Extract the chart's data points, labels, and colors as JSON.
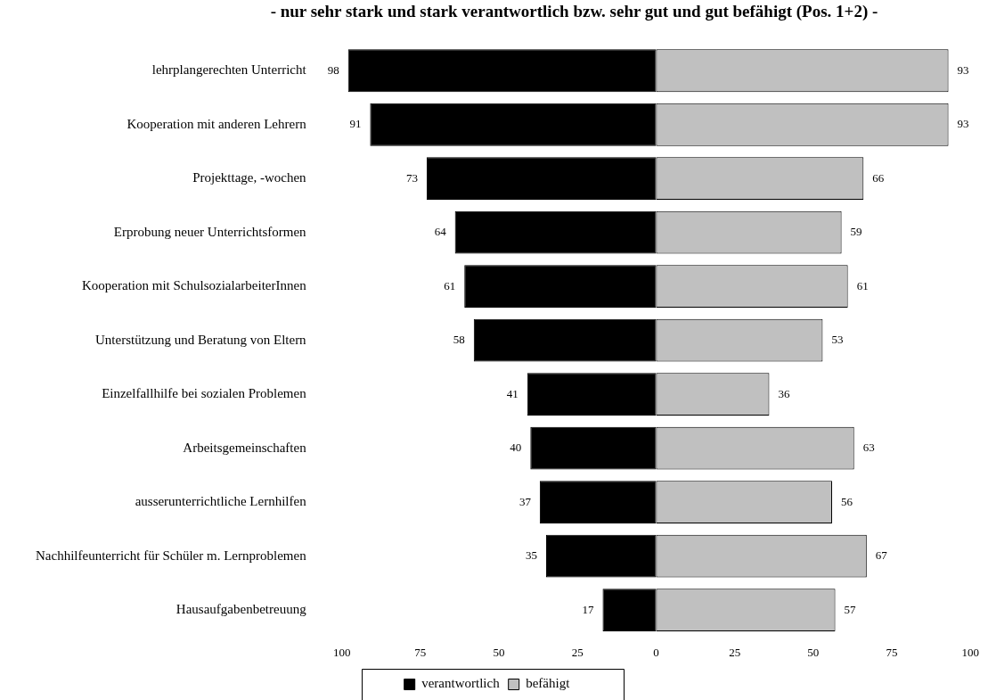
{
  "chart_data": {
    "type": "bar",
    "orientation": "horizontal",
    "title": "- nur sehr stark und stark verantwortlich bzw. sehr gut und gut befähigt (Pos. 1+2) -",
    "categories": [
      "lehrplangerechten Unterricht",
      "Kooperation mit anderen Lehrern",
      "Projekttage, -wochen",
      "Erprobung neuer Unterrichtsformen",
      "Kooperation mit SchulsozialarbeiterInnen",
      "Unterstützung und Beratung von Eltern",
      "Einzelfallhilfe bei sozialen Problemen",
      "Arbeitsgemeinschaften",
      "ausserunterrichtliche Lernhilfen",
      "Nachhilfeunterricht für Schüler m. Lernproblemen",
      "Hausaufgabenbetreuung"
    ],
    "series": [
      {
        "name": "verantwortlich",
        "color": "#000000",
        "base": [
          -98,
          -91,
          -73,
          -64,
          -61,
          -58,
          -41,
          -40,
          -37,
          -35,
          -17
        ],
        "values": [
          98,
          91,
          73,
          64,
          61,
          58,
          41,
          40,
          37,
          35,
          17
        ],
        "value_labels": [
          "98",
          "91",
          "73",
          "64",
          "61",
          "58",
          "41",
          "40",
          "37",
          "35",
          "17"
        ]
      },
      {
        "name": "befähigt",
        "color": "#c0c0c0",
        "values": [
          93,
          93,
          66,
          59,
          61,
          53,
          36,
          63,
          56,
          67,
          57
        ],
        "value_labels": [
          "93",
          "93",
          "66",
          "59",
          "61",
          "53",
          "36",
          "63",
          "56",
          "67",
          "57"
        ]
      }
    ],
    "xlim": [
      -100,
      100
    ],
    "xticks": [
      {
        "value": -100,
        "label": "100"
      },
      {
        "value": -75,
        "label": "75"
      },
      {
        "value": -50,
        "label": "50"
      },
      {
        "value": -25,
        "label": "25"
      },
      0,
      25,
      50,
      75,
      100
    ],
    "legend": "bottom"
  }
}
